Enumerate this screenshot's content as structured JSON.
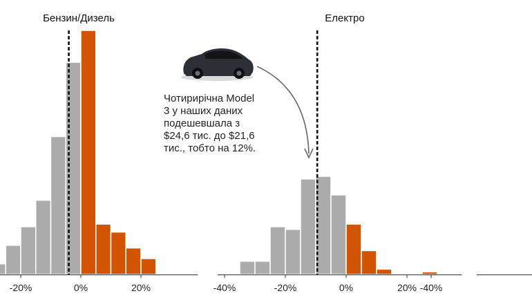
{
  "chart_data": [
    {
      "type": "bar",
      "title": "Бензин/Дизель",
      "bin_width": 5,
      "xlim": [
        -27,
        40
      ],
      "x_ticks": [
        -20,
        0,
        20
      ],
      "x_tick_labels": [
        "-20%",
        "0%",
        "20%"
      ],
      "median_line": -4,
      "bins": [
        {
          "x0": -30,
          "value": 4,
          "group": "decrease"
        },
        {
          "x0": -25,
          "value": 11,
          "group": "decrease"
        },
        {
          "x0": -20,
          "value": 18,
          "group": "decrease"
        },
        {
          "x0": -15,
          "value": 28,
          "group": "decrease"
        },
        {
          "x0": -10,
          "value": 52,
          "group": "decrease"
        },
        {
          "x0": -5,
          "value": 80,
          "group": "decrease"
        },
        {
          "x0": 0,
          "value": 92,
          "group": "increase"
        },
        {
          "x0": 5,
          "value": 19,
          "group": "increase"
        },
        {
          "x0": 10,
          "value": 16,
          "group": "increase"
        },
        {
          "x0": 15,
          "value": 10,
          "group": "increase"
        },
        {
          "x0": 20,
          "value": 6,
          "group": "increase"
        }
      ]
    },
    {
      "type": "bar",
      "title": "Електро",
      "bin_width": 5,
      "xlim": [
        -42,
        40
      ],
      "x_ticks": [
        -40,
        -20,
        0,
        20
      ],
      "x_tick_labels": [
        "-40%",
        "-20%",
        "0%",
        "20%"
      ],
      "median_line": -9.5,
      "bins": [
        {
          "x0": -35,
          "value": 5,
          "group": "decrease"
        },
        {
          "x0": -30,
          "value": 5,
          "group": "decrease"
        },
        {
          "x0": -25,
          "value": 18,
          "group": "decrease"
        },
        {
          "x0": -20,
          "value": 17,
          "group": "decrease"
        },
        {
          "x0": -15,
          "value": 36,
          "group": "decrease"
        },
        {
          "x0": -10,
          "value": 37,
          "group": "decrease"
        },
        {
          "x0": -5,
          "value": 30,
          "group": "decrease"
        },
        {
          "x0": 0,
          "value": 19,
          "group": "increase"
        },
        {
          "x0": 5,
          "value": 9,
          "group": "increase"
        },
        {
          "x0": 10,
          "value": 2,
          "group": "increase"
        },
        {
          "x0": 25,
          "value": 1,
          "group": "increase"
        }
      ]
    },
    {
      "type": "bar",
      "title": "",
      "x_ticks": [
        -40
      ],
      "x_tick_labels": [
        "-40%"
      ],
      "bins": []
    }
  ],
  "annotation": {
    "lines": [
      "Чотирирічна Model",
      "3 у наших даних",
      "подешевшала з",
      "$24,6 тис. до $21,6",
      "тис., тобто на 12%."
    ]
  },
  "colors": {
    "decrease": "#ababab",
    "increase": "#d35400",
    "axis": "#333333",
    "median": "#111111",
    "car_body": "#2c3036",
    "car_glass": "#121418",
    "arrow": "#666666"
  },
  "icons": {
    "car": "car-icon"
  }
}
